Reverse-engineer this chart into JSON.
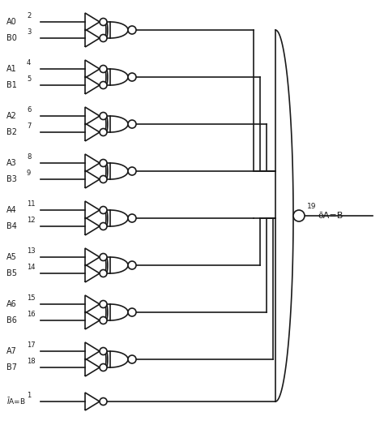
{
  "bg_color": "#ffffff",
  "line_color": "#1a1a1a",
  "rows": [
    {
      "A": "A0",
      "B": "B0",
      "pinA": "2",
      "pinB": "3"
    },
    {
      "A": "A1",
      "B": "B1",
      "pinA": "4",
      "pinB": "5"
    },
    {
      "A": "A2",
      "B": "B2",
      "pinA": "6",
      "pinB": "7"
    },
    {
      "A": "A3",
      "B": "B3",
      "pinA": "8",
      "pinB": "9"
    },
    {
      "A": "A4",
      "B": "B4",
      "pinA": "11",
      "pinB": "12"
    },
    {
      "A": "A5",
      "B": "B5",
      "pinA": "13",
      "pinB": "14"
    },
    {
      "A": "A6",
      "B": "B6",
      "pinA": "15",
      "pinB": "16"
    },
    {
      "A": "A7",
      "B": "B7",
      "pinA": "17",
      "pinB": "18"
    }
  ],
  "iab_pin": "1",
  "output_pin": "19",
  "output_label": "ōA=B",
  "lw": 1.2,
  "figw": 4.74,
  "figh": 5.4,
  "dpi": 100
}
